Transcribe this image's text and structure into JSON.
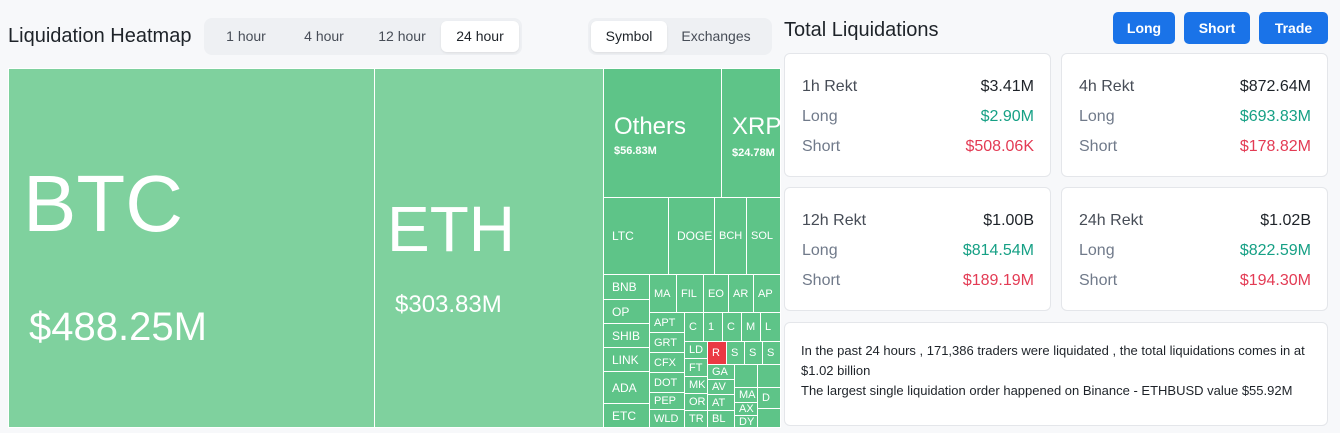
{
  "heatmap": {
    "title": "Liquidation Heatmap",
    "time_options": [
      "1 hour",
      "4 hour",
      "12 hour",
      "24 hour"
    ],
    "time_selected": "24 hour",
    "group_options": [
      "Symbol",
      "Exchanges"
    ],
    "group_selected": "Symbol",
    "colors": {
      "long": "#7fd19e",
      "long_dark": "#5ec488",
      "short": "#ea3943"
    },
    "cells": {
      "btc": {
        "symbol": "BTC",
        "value": "$488.25M"
      },
      "eth": {
        "symbol": "ETH",
        "value": "$303.83M"
      },
      "others": {
        "symbol": "Others",
        "value": "$56.83M"
      },
      "xrp": {
        "symbol": "XRP",
        "value": "$24.78M"
      },
      "ltc": "LTC",
      "doge": "DOGE",
      "bch": "BCH",
      "sol": "SOL",
      "bnb": "BNB",
      "op": "OP",
      "shib": "SHIB",
      "link": "LINK",
      "ada": "ADA",
      "etc": "ETC",
      "ma": "MA",
      "fil": "FIL",
      "eo": "EO",
      "ar": "AR",
      "ar2": "AP",
      "apt": "APT",
      "grt": "GRT",
      "cfx": "CFX",
      "dot": "DOT",
      "pep": "PEP",
      "wld": "WLD",
      "ld": "LD",
      "ft": "FT",
      "mk": "MK",
      "or": "OR",
      "tr": "TR",
      "c1": "C",
      "one": "1",
      "c2": "C",
      "m": "M",
      "l": "L",
      "r": "R",
      "s1": "S",
      "s2": "S",
      "s3": "S",
      "ga": "GA",
      "av": "AV",
      "at": "AT",
      "bl": "BL",
      "ma2": "MA",
      "ax": "AX",
      "dy": "DY",
      "d": "D"
    }
  },
  "total": {
    "title": "Total Liquidations",
    "buttons": {
      "long": "Long",
      "short": "Short",
      "trade": "Trade"
    },
    "cards": [
      {
        "label": "1h Rekt",
        "total": "$3.41M",
        "long_label": "Long",
        "long": "$2.90M",
        "short_label": "Short",
        "short": "$508.06K"
      },
      {
        "label": "4h Rekt",
        "total": "$872.64M",
        "long_label": "Long",
        "long": "$693.83M",
        "short_label": "Short",
        "short": "$178.82M"
      },
      {
        "label": "12h Rekt",
        "total": "$1.00B",
        "long_label": "Long",
        "long": "$814.54M",
        "short_label": "Short",
        "short": "$189.19M"
      },
      {
        "label": "24h Rekt",
        "total": "$1.02B",
        "long_label": "Long",
        "long": "$822.59M",
        "short_label": "Short",
        "short": "$194.30M"
      }
    ],
    "summary_line1": "In the past 24 hours , 171,386 traders were liquidated , the total liquidations comes in at $1.02 billion",
    "summary_line2": "The largest single liquidation order happened on Binance - ETHBUSD value $55.92M"
  }
}
